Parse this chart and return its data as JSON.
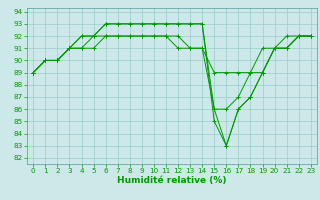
{
  "background_color": "#cce8e8",
  "grid_color": "#99cccc",
  "line_color": "#009900",
  "marker_color": "#009900",
  "xlabel": "Humidité relative (%)",
  "xlabel_color": "#009900",
  "tick_color": "#009900",
  "tick_label_color": "#009900",
  "ylim_min": 82,
  "ylim_max": 94,
  "xlim_min": -0.5,
  "xlim_max": 23.5,
  "yticks": [
    82,
    83,
    84,
    85,
    86,
    87,
    88,
    89,
    90,
    91,
    92,
    93,
    94
  ],
  "xticks": [
    0,
    1,
    2,
    3,
    4,
    5,
    6,
    7,
    8,
    9,
    10,
    11,
    12,
    13,
    14,
    15,
    16,
    17,
    18,
    19,
    20,
    21,
    22,
    23
  ],
  "series": [
    [
      89,
      90,
      90,
      91,
      91,
      91,
      92,
      92,
      92,
      92,
      92,
      92,
      92,
      91,
      91,
      89,
      89,
      89,
      89,
      89,
      91,
      91,
      92,
      92
    ],
    [
      89,
      90,
      90,
      91,
      91,
      92,
      92,
      92,
      92,
      92,
      92,
      92,
      91,
      91,
      91,
      86,
      86,
      87,
      89,
      91,
      91,
      92,
      92,
      92
    ],
    [
      89,
      90,
      90,
      91,
      92,
      92,
      93,
      93,
      93,
      93,
      93,
      93,
      93,
      93,
      93,
      86,
      83,
      86,
      87,
      89,
      91,
      91,
      92,
      92
    ],
    [
      89,
      90,
      90,
      91,
      92,
      92,
      93,
      93,
      93,
      93,
      93,
      93,
      93,
      93,
      93,
      85,
      83,
      86,
      87,
      89,
      91,
      91,
      92,
      92
    ]
  ],
  "xlabel_fontsize": 6.5,
  "tick_fontsize": 5.2,
  "linewidth": 0.7,
  "markersize": 2.5,
  "markeredgewidth": 0.7
}
